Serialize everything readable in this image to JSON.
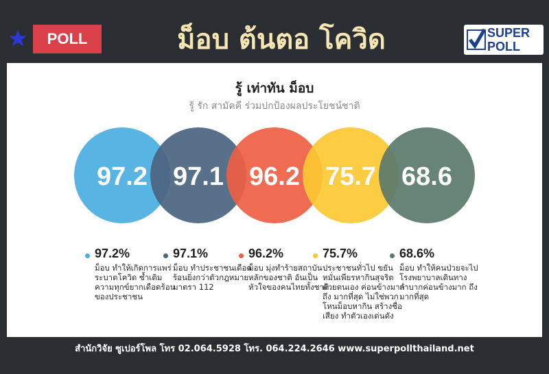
{
  "header": {
    "badge_label": "POLL",
    "title": "ม็อบ ต้นตอ โควิด",
    "logo_line1": "SUPER",
    "logo_line2": "POLL",
    "star_icon": "star-icon",
    "check_icon": "check-icon"
  },
  "colors": {
    "frame": "#2a2d31",
    "title": "#f6e6b4",
    "badge": "#d9404a",
    "c1": "#4aaee0",
    "c2": "#4b6480",
    "c3": "#ee5e43",
    "c4": "#fcc832",
    "c5": "#5a7a6a"
  },
  "chart_data": {
    "type": "bubble",
    "title": "รู้ เท่าทัน ม็อบ",
    "subtitle": "รู้ รัก สามัคคี ร่วมปกป้องผลประโยชน์ชาติ",
    "unit": "%",
    "values": [
      97.2,
      97.1,
      96.2,
      75.7,
      68.6
    ],
    "value_labels": [
      "97.2",
      "97.1",
      "96.2",
      "75.7",
      "68.6"
    ],
    "legend": [
      {
        "value": "97.2%",
        "text": "ม็อบ ทำให้เกิดการแพร่ระบาดโควิด ซ้ำเติมความทุกข์ยากเดือดร้อนของประชาชน"
      },
      {
        "value": "97.1%",
        "text": "ม็อบ ทำประชาชนเดือดร้อนยิ่งกว่าตัวกฎหมายมาตรา 112"
      },
      {
        "value": "96.2%",
        "text": "ม็อบ มุ่งทำร้ายสถาบันหลักของชาติ อันเป็นหัวใจของคนไทยทั้งชาติ"
      },
      {
        "value": "75.7%",
        "text": "ประชาชนทั่วไป ขยันหมั่นเพียรหากินสุจริตด้วยตนเอง ค่อนข้างมากถึง มากที่สุด ไม่ใช่พวกโหนม็อบหากิน สร้างชื่อเสียง ทำตัวเองเด่นดัง"
      },
      {
        "value": "68.6%",
        "text": "ม็อบ ทำให้คนป่วยจะไปโรงพยาบาลเดินทางลำบากค่อนข้างมาก ถึงมากที่สุด"
      }
    ]
  },
  "footer": "สำนักวิจัย ซูเปอร์โพล โทร 02.064.5928  โทร. 064.224.2646 www.superpollthailand.net"
}
